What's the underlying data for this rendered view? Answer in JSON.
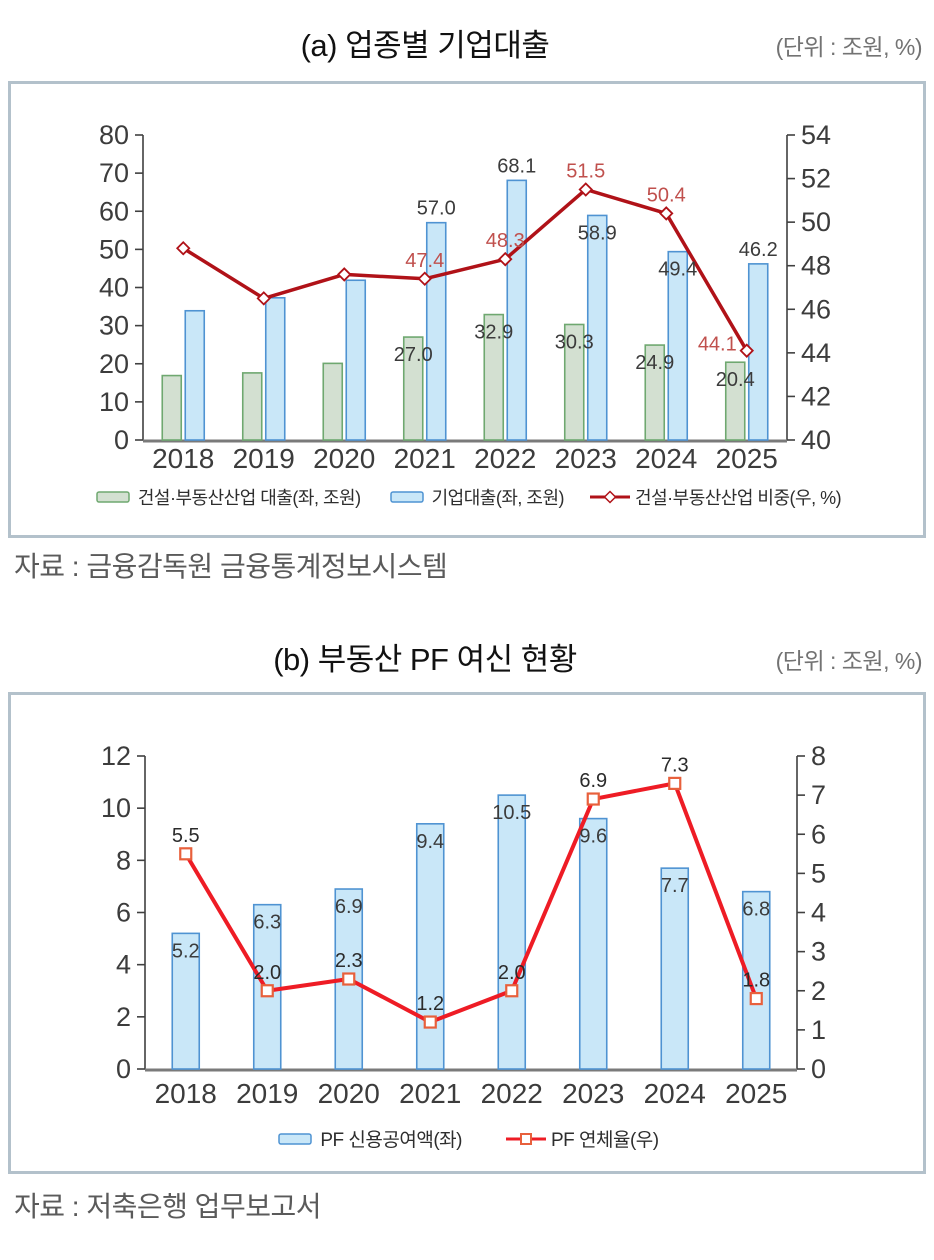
{
  "page": {
    "section_a": {
      "title": "(a) 업종별 기업대출",
      "unit": "(단위 : 조원, %)",
      "source": "자료 : 금융감독원 금융통계정보시스템"
    },
    "section_b": {
      "title": "(b) 부동산 PF 여신 현황",
      "unit": "(단위 : 조원, %)",
      "source": "자료 : 저축은행 업무보고서"
    }
  },
  "colors": {
    "box_border": "#b3c1cb",
    "axis": "#404040",
    "tick_label": "#3c3c3c",
    "x_axis_line": "#7a7a7a",
    "bar_label": "#3b3b3b",
    "green_fill": "#d3e0d1",
    "green_stroke": "#6fa870",
    "blue_fill": "#c9e7f8",
    "blue_stroke": "#4f93d2",
    "dark_red": "#b01218",
    "line_a_label": "#c0504d",
    "bright_red": "#ee1c25",
    "square_marker_stroke": "#e8603c"
  },
  "chart_data": [
    {
      "type": "bar+line",
      "title": "(a) 업종별 기업대출",
      "unit": "(단위 : 조원, %)",
      "source": "자료 : 금융감독원 금융통계정보시스템",
      "categories": [
        "2018",
        "2019",
        "2020",
        "2021",
        "2022",
        "2023",
        "2024",
        "2025"
      ],
      "left_axis": {
        "min": 0,
        "max": 80,
        "step": 10
      },
      "right_axis": {
        "min": 40,
        "max": 54,
        "step": 2
      },
      "grid": false,
      "legend_position": "bottom",
      "series": [
        {
          "name": "건설·부동산산업 대출(좌, 조원)",
          "kind": "bar",
          "axis": "left",
          "values": [
            16.9,
            17.6,
            20.1,
            27.0,
            32.9,
            30.3,
            24.9,
            20.4
          ],
          "labels": [
            "",
            "",
            "",
            "27.0",
            "32.9",
            "30.3",
            "24.9",
            "20.4"
          ],
          "label_pos": [
            "",
            "",
            "",
            "inside",
            "inside",
            "inside",
            "inside",
            "inside"
          ],
          "fill": "#d3e0d1",
          "stroke": "#6fa870"
        },
        {
          "name": "기업대출(좌, 조원)",
          "kind": "bar",
          "axis": "left",
          "values": [
            33.9,
            37.3,
            41.9,
            57.0,
            68.1,
            58.9,
            49.4,
            46.2
          ],
          "labels": [
            "",
            "",
            "",
            "57.0",
            "68.1",
            "58.9",
            "49.4",
            "46.2"
          ],
          "label_pos": [
            "",
            "",
            "",
            "above",
            "above",
            "inside",
            "inside",
            "above"
          ],
          "fill": "#c9e7f8",
          "stroke": "#4f93d2"
        },
        {
          "name": "건설·부동산산업 비중(우, %)",
          "kind": "line",
          "axis": "right",
          "values": [
            48.8,
            46.5,
            47.6,
            47.4,
            48.3,
            51.5,
            50.4,
            44.1
          ],
          "labels": [
            "",
            "",
            "",
            "47.4",
            "48.3",
            "51.5",
            "50.4",
            "44.1"
          ],
          "label_pos": [
            "",
            "",
            "",
            "above",
            "above",
            "above",
            "above",
            "left"
          ],
          "color": "#b01218",
          "marker": "diamond",
          "label_color": "#c0504d"
        }
      ]
    },
    {
      "type": "bar+line",
      "title": "(b) 부동산 PF 여신 현황",
      "unit": "(단위 : 조원, %)",
      "source": "자료 : 저축은행 업무보고서",
      "categories": [
        "2018",
        "2019",
        "2020",
        "2021",
        "2022",
        "2023",
        "2024",
        "2025"
      ],
      "left_axis": {
        "min": 0,
        "max": 12,
        "step": 2
      },
      "right_axis": {
        "min": 0,
        "max": 8,
        "step": 1
      },
      "grid": false,
      "legend_position": "bottom",
      "series": [
        {
          "name": "PF 신용공여액(좌)",
          "kind": "bar",
          "axis": "left",
          "values": [
            5.2,
            6.3,
            6.9,
            9.4,
            10.5,
            9.6,
            7.7,
            6.8
          ],
          "labels": [
            "5.2",
            "6.3",
            "6.9",
            "9.4",
            "10.5",
            "9.6",
            "7.7",
            "6.8"
          ],
          "label_pos": [
            "inside",
            "inside",
            "inside",
            "inside",
            "inside",
            "inside",
            "inside",
            "inside"
          ],
          "fill": "#c9e7f8",
          "stroke": "#4f93d2"
        },
        {
          "name": "PF 연체율(우)",
          "kind": "line",
          "axis": "right",
          "values": [
            5.5,
            2.0,
            2.3,
            1.2,
            2.0,
            6.9,
            7.3,
            1.8
          ],
          "labels": [
            "5.5",
            "2.0",
            "2.3",
            "1.2",
            "2.0",
            "6.9",
            "7.3",
            "1.8"
          ],
          "label_pos": [
            "above",
            "above",
            "above",
            "above",
            "above",
            "above",
            "above",
            "above"
          ],
          "color": "#ee1c25",
          "marker": "square",
          "marker_stroke": "#e8603c",
          "label_color": "#2b2b2b"
        }
      ]
    }
  ]
}
